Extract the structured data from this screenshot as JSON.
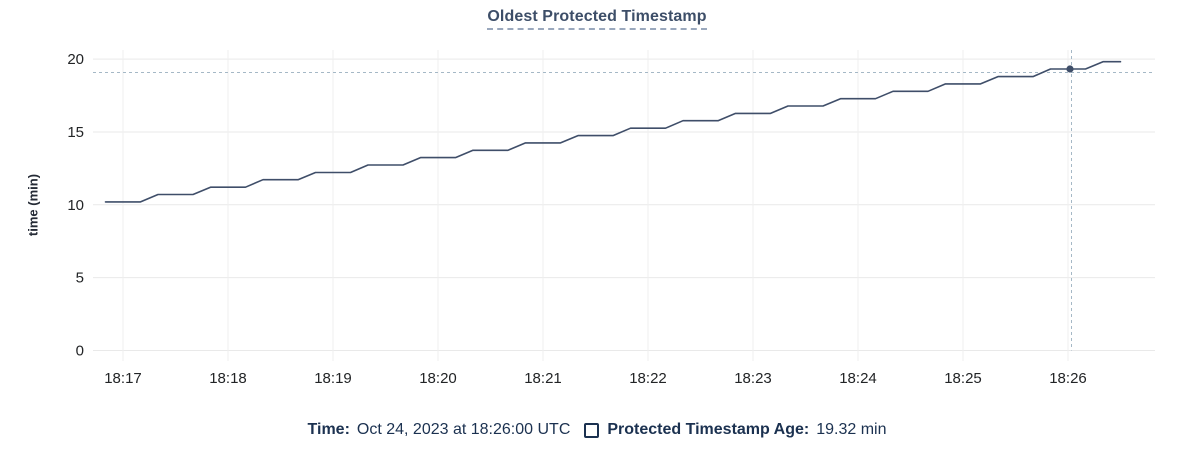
{
  "header": {
    "title": "Oldest Protected Timestamp"
  },
  "footer": {
    "time_label": "Time:",
    "time_value": "Oct 24, 2023 at 18:26:00 UTC",
    "series_label": "Protected Timestamp Age:",
    "series_value": "19.32 min"
  },
  "colors": {
    "title": "#3d4e68",
    "title_underline": "#9aa8bd",
    "axis_text": "#222426",
    "grid_h": "#e9e9e9",
    "grid_v": "#efefef",
    "line": "#3f4e69",
    "crosshair": "#a5b8c6",
    "footer_text": "#1b3150",
    "background": "#ffffff"
  },
  "chart_data": {
    "type": "line",
    "title": "Oldest Protected Timestamp",
    "xlabel": "",
    "ylabel": "time (min)",
    "ylim": [
      0,
      20
    ],
    "y_ticks": [
      0,
      5,
      10,
      15,
      20
    ],
    "x_tick_labels": [
      "18:17",
      "18:18",
      "18:19",
      "18:20",
      "18:21",
      "18:22",
      "18:23",
      "18:24",
      "18:25",
      "18:26"
    ],
    "grid": true,
    "legend_position": "bottom",
    "series": [
      {
        "name": "Protected Timestamp Age",
        "unit": "min",
        "points": [
          [
            "18:16:50",
            10.2
          ],
          [
            "18:17:00",
            10.2
          ],
          [
            "18:17:10",
            10.2
          ],
          [
            "18:17:20",
            10.71
          ],
          [
            "18:17:30",
            10.71
          ],
          [
            "18:17:40",
            10.71
          ],
          [
            "18:17:50",
            11.21
          ],
          [
            "18:18:00",
            11.21
          ],
          [
            "18:18:10",
            11.21
          ],
          [
            "18:18:20",
            11.72
          ],
          [
            "18:18:30",
            11.72
          ],
          [
            "18:18:40",
            11.72
          ],
          [
            "18:18:50",
            12.22
          ],
          [
            "18:19:00",
            12.22
          ],
          [
            "18:19:10",
            12.22
          ],
          [
            "18:19:20",
            12.73
          ],
          [
            "18:19:30",
            12.73
          ],
          [
            "18:19:40",
            12.73
          ],
          [
            "18:19:50",
            13.24
          ],
          [
            "18:20:00",
            13.24
          ],
          [
            "18:20:10",
            13.24
          ],
          [
            "18:20:20",
            13.74
          ],
          [
            "18:20:30",
            13.74
          ],
          [
            "18:20:40",
            13.74
          ],
          [
            "18:20:50",
            14.25
          ],
          [
            "18:21:00",
            14.25
          ],
          [
            "18:21:10",
            14.25
          ],
          [
            "18:21:20",
            14.75
          ],
          [
            "18:21:30",
            14.75
          ],
          [
            "18:21:40",
            14.75
          ],
          [
            "18:21:50",
            15.26
          ],
          [
            "18:22:00",
            15.26
          ],
          [
            "18:22:10",
            15.26
          ],
          [
            "18:22:20",
            15.77
          ],
          [
            "18:22:30",
            15.77
          ],
          [
            "18:22:40",
            15.77
          ],
          [
            "18:22:50",
            16.27
          ],
          [
            "18:23:00",
            16.27
          ],
          [
            "18:23:10",
            16.27
          ],
          [
            "18:23:20",
            16.78
          ],
          [
            "18:23:30",
            16.78
          ],
          [
            "18:23:40",
            16.78
          ],
          [
            "18:23:50",
            17.28
          ],
          [
            "18:24:00",
            17.28
          ],
          [
            "18:24:10",
            17.28
          ],
          [
            "18:24:20",
            17.79
          ],
          [
            "18:24:30",
            17.79
          ],
          [
            "18:24:40",
            17.79
          ],
          [
            "18:24:50",
            18.3
          ],
          [
            "18:25:00",
            18.3
          ],
          [
            "18:25:10",
            18.3
          ],
          [
            "18:25:20",
            18.8
          ],
          [
            "18:25:30",
            18.8
          ],
          [
            "18:25:40",
            18.8
          ],
          [
            "18:25:50",
            19.32
          ],
          [
            "18:26:00",
            19.32
          ],
          [
            "18:26:10",
            19.32
          ],
          [
            "18:26:20",
            19.82
          ],
          [
            "18:26:30",
            19.82
          ]
        ]
      }
    ],
    "hover": {
      "time": "18:26:00",
      "value": 19.32,
      "time_display": "Oct 24, 2023 at 18:26:00 UTC",
      "value_display": "19.32 min"
    }
  }
}
